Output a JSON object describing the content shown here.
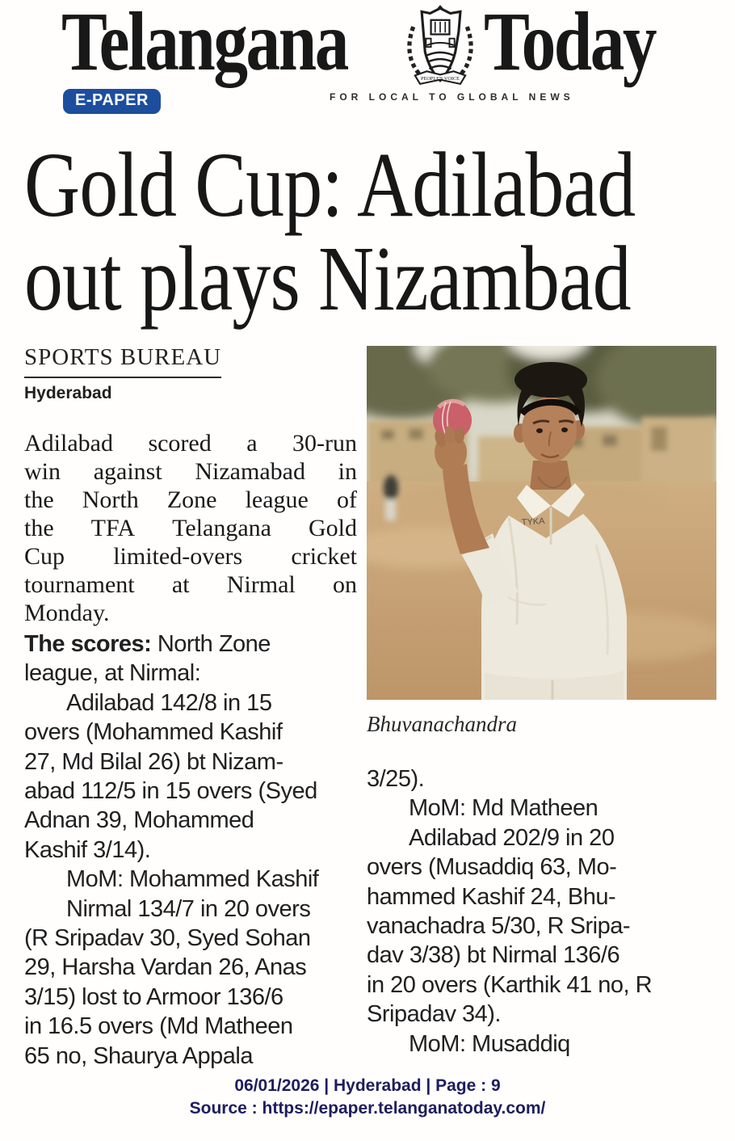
{
  "masthead": {
    "title_left": "Telangana",
    "title_right": "Today",
    "tagline": "FOR LOCAL TO GLOBAL NEWS",
    "epaper_badge": "E-PAPER",
    "badge_color": "#1d4e9e",
    "crest_banner": "PEOPLE'S VOICE"
  },
  "headline": {
    "line1": "Gold Cup: Adilabad",
    "line2": "out plays Nizambad"
  },
  "byline": {
    "bureau": "SPORTS BUREAU",
    "location": "Hyderabad"
  },
  "article": {
    "lead_lines": [
      {
        "t": "Adilabad scored a 30-run",
        "j": true
      },
      {
        "t": "win against Nizamabad in",
        "j": true
      },
      {
        "t": "the North Zone league of",
        "j": true
      },
      {
        "t": "the TFA Telangana Gold",
        "j": true
      },
      {
        "t": "Cup limited-overs cricket",
        "j": true
      },
      {
        "t": "tournament at Nirmal on",
        "j": true
      },
      {
        "t": "Monday.",
        "j": false
      }
    ],
    "left_column_lines": [
      {
        "b": "The scores:",
        "t": " North Zone"
      },
      {
        "t": "league, at Nirmal:"
      },
      {
        "t": "Adilabad 142/8 in 15",
        "ind": true
      },
      {
        "t": "overs (Mohammed Kashif"
      },
      {
        "t": "27, Md Bilal 26) bt Nizam-"
      },
      {
        "t": "abad 112/5 in 15 overs (Syed"
      },
      {
        "t": "Adnan 39, Mohammed"
      },
      {
        "t": "Kashif 3/14)."
      },
      {
        "t": "MoM: Mohammed Kashif",
        "ind": true
      },
      {
        "t": "Nirmal 134/7 in 20 overs",
        "ind": true
      },
      {
        "t": "(R Sripadav 30, Syed Sohan"
      },
      {
        "t": "29, Harsha Vardan 26, Anas"
      },
      {
        "t": "3/15) lost to Armoor 136/6"
      },
      {
        "t": "in 16.5 overs (Md Matheen"
      },
      {
        "t": "65 no, Shaurya Appala"
      }
    ],
    "right_column_lines": [
      {
        "t": "3/25)."
      },
      {
        "t": "MoM: Md Matheen",
        "ind": true
      },
      {
        "t": "Adilabad 202/9 in 20",
        "ind": true
      },
      {
        "t": "overs (Musaddiq 63, Mo-"
      },
      {
        "t": "hammed Kashif 24, Bhu-"
      },
      {
        "t": "vanachadra 5/30, R Sripa-"
      },
      {
        "t": "dav 3/38) bt Nirmal 136/6"
      },
      {
        "t": "in 20 overs (Karthik 41 no, R"
      },
      {
        "t": "Sripadav 34)."
      },
      {
        "t": "MoM: Musaddiq",
        "ind": true
      }
    ]
  },
  "photo": {
    "caption": "Bhuvanachandra",
    "shirt_logo": "TYKA",
    "description": "Young cricketer in white jersey holding up a red cricket ball on a sandy ground"
  },
  "footer": {
    "line1": "06/01/2026 | Hyderabad | Page : 9",
    "line2": "Source : https://epaper.telanganatoday.com/",
    "color": "#1d1d5f"
  }
}
